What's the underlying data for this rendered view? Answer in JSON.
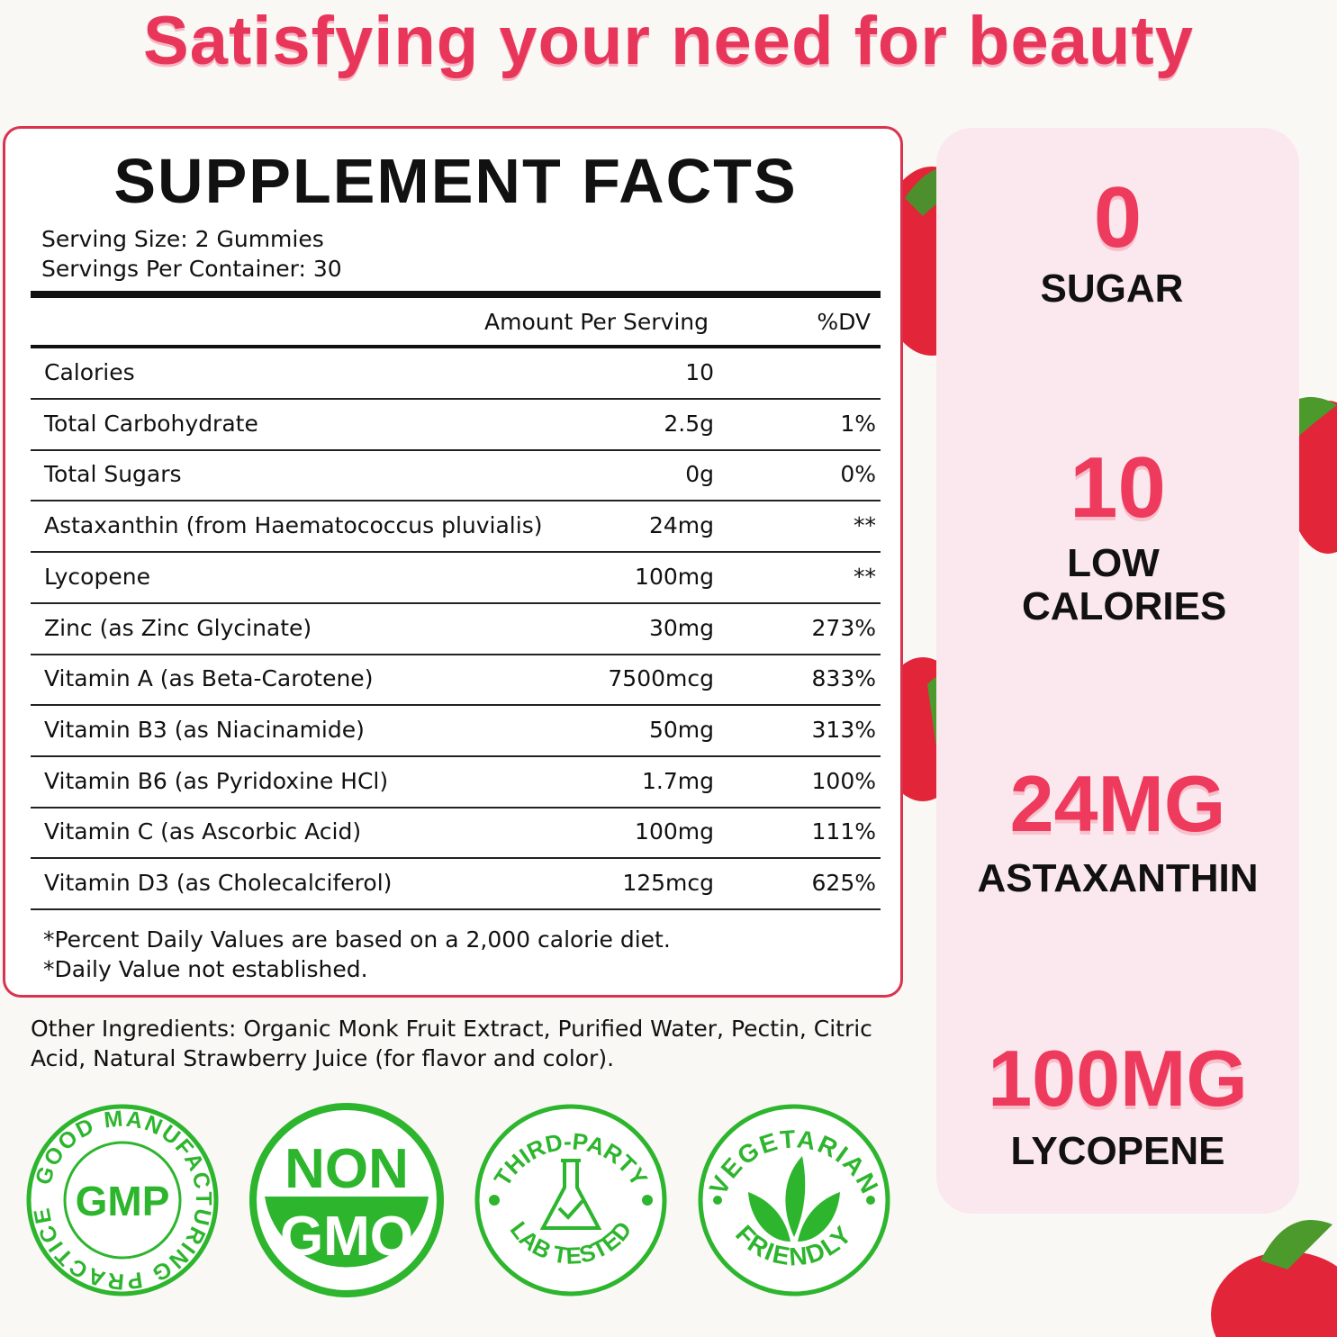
{
  "headline": "Satisfying your need for beauty",
  "facts": {
    "title": "SUPPLEMENT FACTS",
    "serving_size": "Serving Size: 2 Gummies",
    "servings_per_container": "Servings Per Container: 30",
    "col_amount": "Amount Per Serving",
    "col_dv": "%DV",
    "rows": [
      {
        "name": "Calories",
        "amount": "10",
        "dv": ""
      },
      {
        "name": "Total Carbohydrate",
        "amount": "2.5g",
        "dv": "1%"
      },
      {
        "name": "Total Sugars",
        "amount": "0g",
        "dv": "0%"
      },
      {
        "name": "Astaxanthin (from Haematococcus pluvialis)",
        "amount": "24mg",
        "dv": "**"
      },
      {
        "name": "Lycopene",
        "amount": "100mg",
        "dv": "**"
      },
      {
        "name": "Zinc (as Zinc Glycinate)",
        "amount": "30mg",
        "dv": "273%"
      },
      {
        "name": "Vitamin A (as Beta-Carotene)",
        "amount": "7500mcg",
        "dv": "833%"
      },
      {
        "name": "Vitamin B3 (as Niacinamide)",
        "amount": "50mg",
        "dv": "313%"
      },
      {
        "name": "Vitamin B6 (as Pyridoxine HCl)",
        "amount": "1.7mg",
        "dv": "100%"
      },
      {
        "name": "Vitamin C (as Ascorbic Acid)",
        "amount": "100mg",
        "dv": "111%"
      },
      {
        "name": "Vitamin D3 (as Cholecalciferol)",
        "amount": "125mcg",
        "dv": "625%"
      }
    ],
    "footnote1": "*Percent Daily Values are based on a 2,000 calorie diet.",
    "footnote2": "*Daily Value not established."
  },
  "other_ingredients": "Other Ingredients: Organic Monk Fruit Extract, Purified Water, Pectin, Citric Acid, Natural Strawberry Juice (for flavor and color).",
  "highlights": [
    {
      "value": "0",
      "label": "SUGAR"
    },
    {
      "value": "10",
      "label": "LOW CALORIES"
    },
    {
      "value": "24MG",
      "label": "ASTAXANTHIN"
    },
    {
      "value": "100MG",
      "label": "LYCOPENE"
    }
  ],
  "badges": {
    "gmp": {
      "center": "GMP",
      "ring": "GOOD MANUFACTURING PRACTICE"
    },
    "nongmo": {
      "top": "NON",
      "bottom": "GMO"
    },
    "lab": {
      "top": "THIRD-PARTY",
      "bottom": "LAB TESTED"
    },
    "veg": {
      "top": "VEGETARIAN",
      "bottom": "FRIENDLY"
    }
  },
  "colors": {
    "accent": "#e8365a",
    "border": "#d9334f",
    "badge_green": "#2db52d",
    "panel": "#fbe8ee"
  }
}
